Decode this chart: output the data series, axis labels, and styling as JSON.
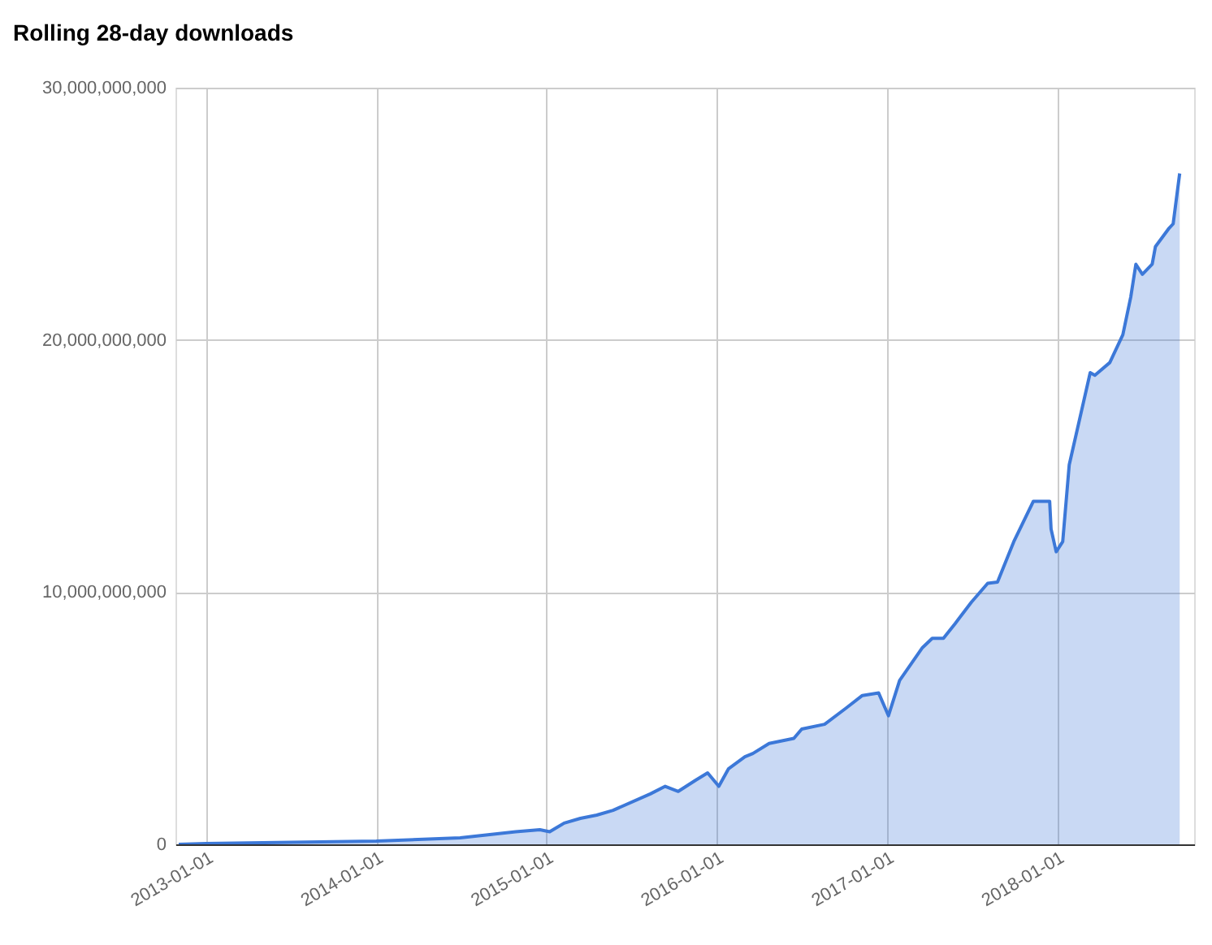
{
  "chart_data": {
    "type": "area",
    "title": "Rolling 28-day downloads",
    "x": [
      "2012-11-03",
      "2013-01-01",
      "2014-01-01",
      "2014-06-30",
      "2014-10-27",
      "2014-12-18",
      "2015-01-08",
      "2015-02-08",
      "2015-03-15",
      "2015-04-19",
      "2015-05-24",
      "2015-08-12",
      "2015-09-13",
      "2015-10-11",
      "2015-11-18",
      "2015-12-13",
      "2016-01-06",
      "2016-01-27",
      "2016-03-02",
      "2016-03-19",
      "2016-04-23",
      "2016-06-15",
      "2016-07-02",
      "2016-08-20",
      "2016-10-05",
      "2016-11-09",
      "2016-12-14",
      "2017-01-04",
      "2017-01-28",
      "2017-03-18",
      "2017-04-08",
      "2017-05-02",
      "2017-05-27",
      "2017-07-01",
      "2017-08-05",
      "2017-08-26",
      "2017-09-30",
      "2017-11-11",
      "2017-12-16",
      "2017-12-19",
      "2017-12-30",
      "2018-01-13",
      "2018-01-27",
      "2018-03-13",
      "2018-03-23",
      "2018-04-24",
      "2018-05-22",
      "2018-06-08",
      "2018-06-19",
      "2018-07-03",
      "2018-07-24",
      "2018-07-31",
      "2018-08-28",
      "2018-09-07",
      "2018-09-21"
    ],
    "series": [
      {
        "color": "#3c78d8",
        "values": [
          0,
          30000000,
          130000000,
          260000000,
          500000000,
          580000000,
          500000000,
          840000000,
          1030000000,
          1160000000,
          1350000000,
          2000000000,
          2300000000,
          2100000000,
          2550000000,
          2830000000,
          2300000000,
          3000000000,
          3470000000,
          3600000000,
          4000000000,
          4200000000,
          4570000000,
          4760000000,
          5400000000,
          5900000000,
          6000000000,
          5100000000,
          6500000000,
          7800000000,
          8170000000,
          8170000000,
          8750000000,
          9600000000,
          10350000000,
          10400000000,
          12000000000,
          13600000000,
          13600000000,
          12500000000,
          11600000000,
          12000000000,
          15050000000,
          18700000000,
          18600000000,
          19100000000,
          20200000000,
          21700000000,
          23000000000,
          22600000000,
          23000000000,
          23700000000,
          24400000000,
          24600000000,
          26600000000
        ]
      }
    ],
    "xlim": [
      "2012-10-27",
      "2018-10-22"
    ],
    "xticks": [
      "2013-01-01",
      "2014-01-01",
      "2015-01-01",
      "2016-01-01",
      "2017-01-01",
      "2018-01-01"
    ],
    "ylim": [
      0,
      30000000000
    ],
    "yticks": [
      0,
      {
        "value": 10000000000,
        "label": "10,000,000,000"
      },
      {
        "value": 20000000000,
        "label": "20,000,000,000"
      },
      {
        "value": 30000000000,
        "label": "30,000,000,000"
      }
    ],
    "grid": true
  }
}
